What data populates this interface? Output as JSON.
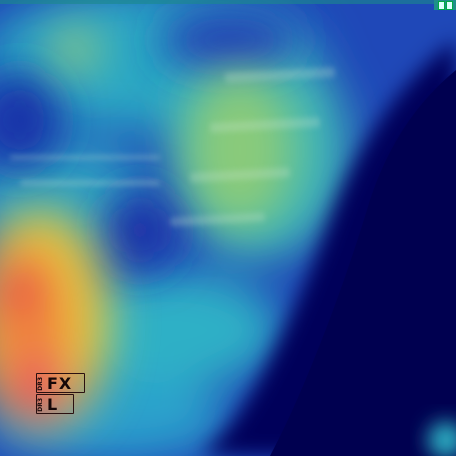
{
  "image": {
    "kind": "lateral spine radiograph with heat-map overlay",
    "colormap": [
      "#00005a",
      "#0a1a9c",
      "#1e5ad0",
      "#2fb6c8",
      "#7fd37a",
      "#e8d23c",
      "#f08a3a",
      "#e8404a"
    ]
  },
  "markers": {
    "top": {
      "small_label": "DR3",
      "big_label": "FX"
    },
    "bottom": {
      "small_label": "DR3",
      "big_label": "L"
    }
  }
}
